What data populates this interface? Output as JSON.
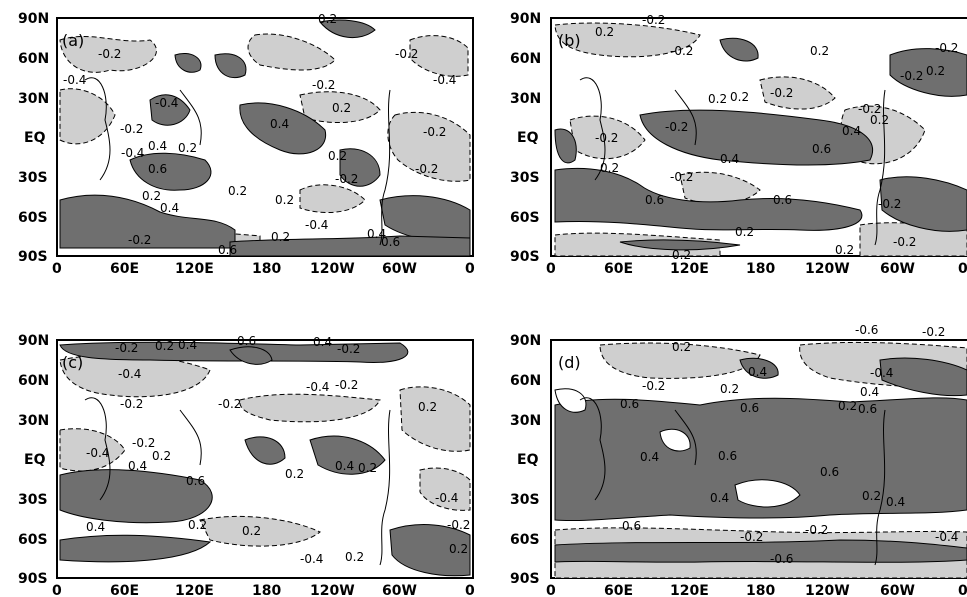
{
  "figure": {
    "colors": {
      "positive_fill": "#6f6f6f",
      "negative_fill": "#cfcfcf",
      "background": "#ffffff",
      "contour_line": "#000000"
    },
    "shading": "dark gray = correlation > 0.2 (solid contours); light gray = correlation < -0.2 (dashed contours)",
    "lat_ticks": [
      "90N",
      "60N",
      "30N",
      "EQ",
      "30S",
      "60S",
      "90S"
    ],
    "lon_ticks": [
      "0",
      "60E",
      "120E",
      "180",
      "120W",
      "60W",
      "0"
    ],
    "panels": [
      {
        "id": "a",
        "label": "(a)",
        "contour_labels": [
          "0.2",
          "-0.2",
          "0.4",
          "-0.4",
          "0.6"
        ]
      },
      {
        "id": "b",
        "label": "(b)",
        "contour_labels": [
          "0.2",
          "-0.2",
          "0.4",
          "0.6"
        ]
      },
      {
        "id": "c",
        "label": "(c)",
        "contour_labels": [
          "0.2",
          "-0.2",
          "0.4",
          "-0.4",
          "0.6"
        ]
      },
      {
        "id": "d",
        "label": "(d)",
        "contour_labels": [
          "0.2",
          "-0.2",
          "0.4",
          "-0.4",
          "0.6",
          "-0.6"
        ]
      }
    ]
  }
}
